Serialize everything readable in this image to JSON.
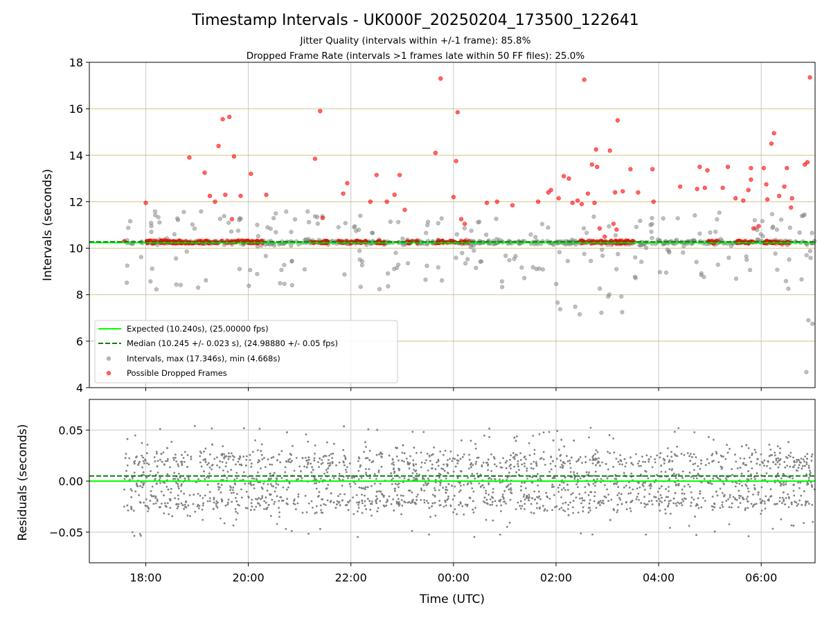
{
  "chart_data": {
    "type": "scatter",
    "title": "Timestamp Intervals - UK000F_20250204_173500_122641",
    "subtitle_lines": [
      "Jitter Quality (intervals within +/-1 frame): 85.8%",
      "Dropped Frame Rate (intervals >1 frames late within 50 FF files): 25.0%"
    ],
    "xlabel": "Time (UTC)",
    "x_tick_labels": [
      "18:00",
      "20:00",
      "22:00",
      "00:00",
      "02:00",
      "04:00",
      "06:00"
    ],
    "x_tick_hours": [
      18,
      20,
      22,
      24,
      26,
      28,
      30
    ],
    "xlim_hours": [
      16.9,
      31.05
    ],
    "data_start_hour": 17.58,
    "data_end_hour": 31.05,
    "panels": [
      {
        "name": "intervals",
        "ylabel": "Intervals (seconds)",
        "ylim": [
          4,
          18
        ],
        "y_ticks": [
          4,
          6,
          8,
          10,
          12,
          14,
          16,
          18
        ],
        "y_tick_labels": [
          "4",
          "6",
          "8",
          "10",
          "12",
          "14",
          "16",
          "18"
        ],
        "legend_position": "lower-left",
        "series": [
          {
            "name": "Expected (10.240s), (25.00000 fps)",
            "kind": "hline",
            "value": 10.24,
            "color": "#00ff00",
            "style": "solid"
          },
          {
            "name": "Median (10.245 +/- 0.023 s), (24.98880 +/- 0.05 fps)",
            "kind": "hline",
            "value": 10.245,
            "color": "#008000",
            "style": "dashed"
          },
          {
            "name": "Intervals, max (17.346s), min (4.668s)",
            "kind": "points",
            "color": "#808080",
            "max": 17.346,
            "min": 4.668,
            "center": 10.245,
            "spread": 0.023
          },
          {
            "name": "Possible Dropped Frames",
            "kind": "points",
            "color": "#ff0000",
            "points": [
              [
                17.58,
                10.3
              ],
              [
                18.0,
                11.95
              ],
              [
                18.85,
                13.9
              ],
              [
                19.15,
                13.25
              ],
              [
                19.25,
                12.25
              ],
              [
                19.35,
                12.0
              ],
              [
                19.42,
                14.4
              ],
              [
                19.5,
                15.55
              ],
              [
                19.55,
                12.3
              ],
              [
                19.63,
                15.65
              ],
              [
                19.68,
                11.25
              ],
              [
                19.72,
                13.95
              ],
              [
                19.85,
                12.25
              ],
              [
                20.05,
                13.2
              ],
              [
                20.35,
                12.3
              ],
              [
                21.3,
                13.85
              ],
              [
                21.4,
                15.9
              ],
              [
                21.45,
                11.3
              ],
              [
                21.85,
                12.35
              ],
              [
                21.93,
                12.8
              ],
              [
                22.38,
                12.0
              ],
              [
                22.5,
                13.15
              ],
              [
                22.7,
                12.0
              ],
              [
                22.85,
                12.3
              ],
              [
                22.95,
                13.15
              ],
              [
                23.05,
                11.65
              ],
              [
                23.65,
                14.1
              ],
              [
                23.75,
                17.3
              ],
              [
                24.0,
                12.2
              ],
              [
                24.05,
                13.75
              ],
              [
                24.08,
                15.85
              ],
              [
                24.15,
                11.25
              ],
              [
                24.22,
                11.05
              ],
              [
                24.65,
                11.95
              ],
              [
                24.85,
                12.0
              ],
              [
                25.15,
                11.85
              ],
              [
                25.65,
                12.0
              ],
              [
                25.85,
                12.4
              ],
              [
                25.9,
                12.5
              ],
              [
                26.05,
                12.15
              ],
              [
                26.15,
                13.1
              ],
              [
                26.25,
                13.0
              ],
              [
                26.32,
                11.95
              ],
              [
                26.42,
                12.05
              ],
              [
                26.5,
                11.9
              ],
              [
                26.55,
                17.25
              ],
              [
                26.62,
                12.35
              ],
              [
                26.7,
                13.6
              ],
              [
                26.75,
                11.95
              ],
              [
                26.8,
                13.5
              ],
              [
                26.78,
                14.25
              ],
              [
                26.85,
                10.85
              ],
              [
                26.95,
                10.5
              ],
              [
                27.05,
                14.2
              ],
              [
                27.12,
                11.05
              ],
              [
                27.15,
                12.4
              ],
              [
                27.18,
                10.8
              ],
              [
                27.2,
                15.5
              ],
              [
                27.3,
                12.45
              ],
              [
                27.45,
                13.4
              ],
              [
                27.6,
                12.4
              ],
              [
                27.88,
                13.4
              ],
              [
                27.9,
                12.0
              ],
              [
                28.42,
                12.65
              ],
              [
                28.75,
                12.55
              ],
              [
                28.8,
                13.5
              ],
              [
                28.9,
                12.6
              ],
              [
                28.95,
                13.35
              ],
              [
                29.25,
                12.6
              ],
              [
                29.35,
                13.5
              ],
              [
                29.5,
                12.15
              ],
              [
                29.65,
                12.05
              ],
              [
                29.75,
                12.5
              ],
              [
                29.8,
                12.95
              ],
              [
                29.8,
                13.45
              ],
              [
                29.85,
                10.85
              ],
              [
                29.95,
                10.95
              ],
              [
                30.05,
                13.45
              ],
              [
                30.1,
                12.75
              ],
              [
                30.12,
                12.1
              ],
              [
                30.2,
                14.5
              ],
              [
                30.25,
                14.95
              ],
              [
                30.35,
                12.25
              ],
              [
                30.45,
                12.65
              ],
              [
                30.5,
                13.45
              ],
              [
                30.58,
                11.75
              ],
              [
                30.6,
                12.15
              ],
              [
                30.85,
                13.6
              ],
              [
                30.9,
                13.7
              ],
              [
                30.95,
                17.35
              ]
            ],
            "clusters": [
              [
                18.0,
                20.3
              ],
              [
                21.2,
                21.55
              ],
              [
                21.75,
                22.3
              ],
              [
                22.45,
                22.65
              ],
              [
                23.1,
                23.3
              ],
              [
                23.65,
                24.05
              ],
              [
                24.1,
                24.3
              ],
              [
                26.45,
                27.55
              ],
              [
                28.95,
                29.15
              ],
              [
                29.5,
                29.85
              ],
              [
                30.05,
                30.55
              ]
            ]
          }
        ]
      },
      {
        "name": "residuals",
        "ylabel": "Residuals (seconds)",
        "ylim": [
          -0.08,
          0.08
        ],
        "y_ticks": [
          -0.05,
          0.0,
          0.05
        ],
        "y_tick_labels": [
          "−0.05",
          "0.00",
          "0.05"
        ],
        "series": [
          {
            "name": "residual points",
            "kind": "points",
            "color": "#808080",
            "bands": [
              -0.02,
              0.0,
              0.02
            ]
          },
          {
            "name": "expected offset",
            "kind": "hline",
            "value": 0.0,
            "color": "#00ff00",
            "style": "solid"
          },
          {
            "name": "median offset",
            "kind": "hline",
            "value": 0.005,
            "color": "#008000",
            "style": "dashed"
          }
        ]
      }
    ]
  }
}
